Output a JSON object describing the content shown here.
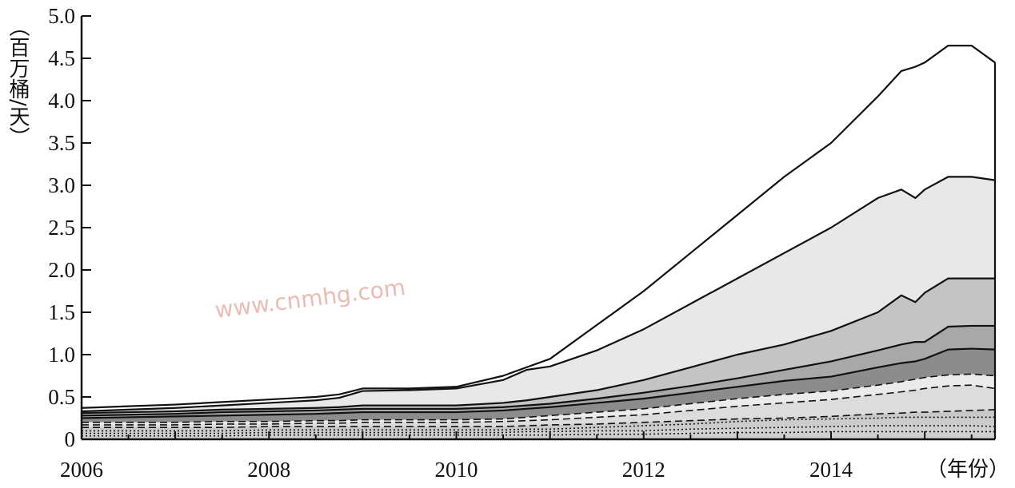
{
  "chart_data": {
    "type": "area",
    "stacked": true,
    "ylabel": "（百万桶/天）",
    "xlabel": "（年份）",
    "xlim": [
      2006,
      2015.75
    ],
    "ylim": [
      0,
      5.0
    ],
    "x_ticks": [
      "2006",
      "2008",
      "2010",
      "2012",
      "2014"
    ],
    "y_ticks": [
      "0",
      "0.5",
      "1.0",
      "1.5",
      "2.0",
      "2.5",
      "3.0",
      "3.5",
      "4.0",
      "4.5",
      "5.0"
    ],
    "grid": false,
    "x": [
      2006.0,
      2006.5,
      2007.0,
      2007.5,
      2008.0,
      2008.5,
      2008.75,
      2009.0,
      2009.5,
      2010.0,
      2010.5,
      2010.75,
      2011.0,
      2011.5,
      2012.0,
      2012.5,
      2013.0,
      2013.5,
      2014.0,
      2014.5,
      2014.75,
      2014.9,
      2015.0,
      2015.25,
      2015.5,
      2015.75
    ],
    "totals": [
      0.37,
      0.39,
      0.41,
      0.44,
      0.47,
      0.5,
      0.53,
      0.6,
      0.6,
      0.62,
      0.75,
      0.85,
      0.95,
      1.35,
      1.75,
      2.2,
      2.65,
      3.1,
      3.5,
      4.05,
      4.35,
      4.4,
      4.45,
      4.65,
      4.65,
      4.45
    ],
    "boundaries": [
      {
        "style": "dotted",
        "fill": "#d8d8d8",
        "values": [
          0.04,
          0.04,
          0.04,
          0.04,
          0.05,
          0.05,
          0.05,
          0.05,
          0.05,
          0.05,
          0.05,
          0.05,
          0.05,
          0.06,
          0.06,
          0.07,
          0.08,
          0.08,
          0.09,
          0.09,
          0.09,
          0.09,
          0.09,
          0.09,
          0.09,
          0.09
        ]
      },
      {
        "style": "dotted",
        "fill": "#d0d0d0",
        "values": [
          0.07,
          0.07,
          0.07,
          0.07,
          0.08,
          0.08,
          0.08,
          0.08,
          0.08,
          0.08,
          0.08,
          0.09,
          0.09,
          0.1,
          0.1,
          0.12,
          0.13,
          0.14,
          0.15,
          0.16,
          0.16,
          0.16,
          0.16,
          0.16,
          0.16,
          0.15
        ]
      },
      {
        "style": "dotted",
        "fill": "#cccccc",
        "values": [
          0.1,
          0.1,
          0.1,
          0.1,
          0.11,
          0.11,
          0.11,
          0.11,
          0.11,
          0.11,
          0.11,
          0.12,
          0.12,
          0.14,
          0.16,
          0.18,
          0.21,
          0.23,
          0.24,
          0.25,
          0.26,
          0.26,
          0.26,
          0.26,
          0.26,
          0.26
        ]
      },
      {
        "style": "dashed",
        "fill": "#c8c8c8",
        "values": [
          0.14,
          0.14,
          0.14,
          0.14,
          0.15,
          0.15,
          0.15,
          0.15,
          0.15,
          0.15,
          0.15,
          0.16,
          0.17,
          0.18,
          0.2,
          0.22,
          0.24,
          0.25,
          0.27,
          0.3,
          0.31,
          0.32,
          0.32,
          0.33,
          0.34,
          0.35
        ]
      },
      {
        "style": "dashed",
        "fill": "#dcdcdc",
        "values": [
          0.17,
          0.17,
          0.17,
          0.18,
          0.18,
          0.19,
          0.19,
          0.2,
          0.2,
          0.2,
          0.21,
          0.22,
          0.23,
          0.26,
          0.29,
          0.34,
          0.39,
          0.43,
          0.47,
          0.53,
          0.56,
          0.58,
          0.6,
          0.63,
          0.64,
          0.6
        ]
      },
      {
        "style": "dashed",
        "fill": "#ebebeb",
        "values": [
          0.2,
          0.2,
          0.2,
          0.21,
          0.21,
          0.22,
          0.22,
          0.23,
          0.23,
          0.23,
          0.24,
          0.26,
          0.28,
          0.32,
          0.36,
          0.42,
          0.48,
          0.53,
          0.57,
          0.64,
          0.68,
          0.71,
          0.73,
          0.76,
          0.77,
          0.75
        ]
      },
      {
        "style": "solid",
        "fill": "#8c8c8c",
        "values": [
          0.25,
          0.26,
          0.27,
          0.28,
          0.29,
          0.3,
          0.31,
          0.32,
          0.32,
          0.32,
          0.34,
          0.36,
          0.38,
          0.43,
          0.48,
          0.55,
          0.62,
          0.69,
          0.74,
          0.85,
          0.9,
          0.92,
          0.95,
          1.06,
          1.07,
          1.06
        ]
      },
      {
        "style": "solid",
        "fill": "#a8a8a8",
        "values": [
          0.28,
          0.29,
          0.3,
          0.32,
          0.33,
          0.34,
          0.35,
          0.36,
          0.36,
          0.36,
          0.38,
          0.4,
          0.42,
          0.48,
          0.55,
          0.63,
          0.72,
          0.82,
          0.92,
          1.05,
          1.12,
          1.15,
          1.15,
          1.33,
          1.34,
          1.34
        ]
      },
      {
        "style": "solid",
        "fill": "#c4c4c4",
        "values": [
          0.31,
          0.32,
          0.33,
          0.35,
          0.36,
          0.37,
          0.38,
          0.4,
          0.4,
          0.4,
          0.43,
          0.46,
          0.5,
          0.58,
          0.7,
          0.85,
          1.0,
          1.12,
          1.28,
          1.5,
          1.7,
          1.62,
          1.73,
          1.9,
          1.9,
          1.9
        ]
      },
      {
        "style": "solid",
        "fill": "#e8e8e8",
        "values": [
          0.33,
          0.35,
          0.37,
          0.4,
          0.43,
          0.46,
          0.49,
          0.57,
          0.58,
          0.6,
          0.7,
          0.82,
          0.86,
          1.05,
          1.3,
          1.6,
          1.9,
          2.2,
          2.5,
          2.85,
          2.95,
          2.85,
          2.95,
          3.1,
          3.1,
          3.06
        ]
      },
      {
        "style": "solid",
        "fill": "#ffffff",
        "values": [
          0.37,
          0.39,
          0.41,
          0.44,
          0.47,
          0.5,
          0.53,
          0.6,
          0.6,
          0.62,
          0.75,
          0.85,
          0.95,
          1.35,
          1.75,
          2.2,
          2.65,
          3.1,
          3.5,
          4.05,
          4.35,
          4.4,
          4.45,
          4.65,
          4.65,
          4.45
        ]
      }
    ]
  },
  "watermark": {
    "text": "www.cnmhg.com"
  },
  "colors": {
    "ink": "#111111",
    "watermark": "#e8b0a8"
  }
}
